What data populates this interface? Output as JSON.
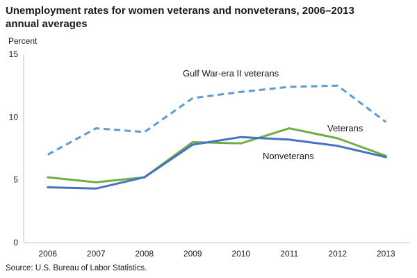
{
  "chart": {
    "title_line1": "Unemployment rates for women veterans and nonveterans, 2006–2013",
    "title_line2": "annual averages",
    "source": "Source:  U.S. Bureau of Labor Statistics."
  },
  "chart_data": {
    "type": "line",
    "title": "Unemployment rates for women veterans and nonveterans, 2006–2013 annual averages",
    "ylabel": "Percent",
    "xlabel": "",
    "x": [
      "2006",
      "2007",
      "2008",
      "2009",
      "2010",
      "2011",
      "2012",
      "2013"
    ],
    "ylim": [
      0,
      15
    ],
    "yticks": [
      0,
      5,
      10,
      15
    ],
    "grid": false,
    "legend": "inline labels",
    "series": [
      {
        "name": "Gulf War-era II veterans",
        "values": [
          7.0,
          9.1,
          8.8,
          11.5,
          12.0,
          12.4,
          12.5,
          9.6
        ],
        "color": "#5b9bd5",
        "dashed": true
      },
      {
        "name": "Veterans",
        "values": [
          5.2,
          4.8,
          5.2,
          8.0,
          7.9,
          9.1,
          8.3,
          6.9
        ],
        "color": "#70ad47",
        "dashed": false
      },
      {
        "name": "Nonveterans",
        "values": [
          4.4,
          4.3,
          5.2,
          7.8,
          8.4,
          8.2,
          7.7,
          6.8
        ],
        "color": "#4472c4",
        "dashed": false
      }
    ]
  }
}
